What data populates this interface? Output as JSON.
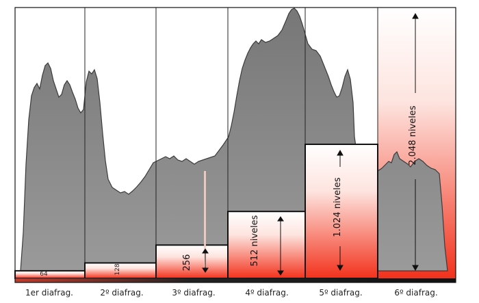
{
  "diagram": {
    "columns": [
      {
        "label": "1er diafrag.",
        "levels_label": "64",
        "fill_fraction": 0.028
      },
      {
        "label": "2º diafrag.",
        "levels_label": "128",
        "fill_fraction": 0.057
      },
      {
        "label": "3º diafrag.",
        "levels_label": "256",
        "fill_fraction": 0.123
      },
      {
        "label": "4º diafrag.",
        "levels_label": "512 niveles",
        "fill_fraction": 0.247
      },
      {
        "label": "5º diafrag.",
        "levels_label": "1.024 niveles",
        "fill_fraction": 0.495
      },
      {
        "label": "6º diafrag.",
        "levels_label": "2.048 niveles",
        "fill_fraction": 1.0
      }
    ],
    "colors": {
      "histogram": "#8c8c8c",
      "histogram_edge": "#3a3a3a",
      "grad_top": "#ffffff",
      "grad_bottom": "#f2321c",
      "frame": "#111111"
    }
  }
}
